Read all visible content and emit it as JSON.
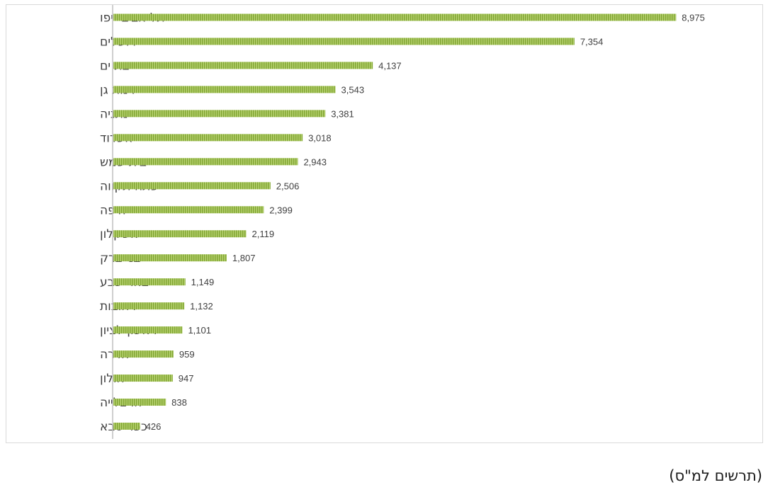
{
  "chart_data": {
    "type": "bar",
    "orientation": "horizontal",
    "categories": [
      "תל אביב -יפו",
      "ירושלים",
      "בת ים",
      "רמת גן",
      "נתניה",
      "אשדוד",
      "בית שמש",
      "פתח תקווה",
      "חיפה",
      "אשקלון",
      "בני ברק",
      "באר שבע",
      "רחובות",
      "ראשון לציון",
      "חדרה",
      "חולון",
      "הרצלייה",
      "כפר סבא"
    ],
    "values": [
      8975,
      7354,
      4137,
      3543,
      3381,
      3018,
      2943,
      2506,
      2399,
      2119,
      1807,
      1149,
      1132,
      1101,
      959,
      947,
      838,
      426
    ],
    "value_labels": [
      "8,975",
      "7,354",
      "4,137",
      "3,543",
      "3,381",
      "3,018",
      "2,943",
      "2,506",
      "2,399",
      "2,119",
      "1,807",
      "1,149",
      "1,132",
      "1,101",
      "959",
      "947",
      "838",
      "426"
    ],
    "xlim": [
      0,
      10000
    ],
    "grid": false,
    "bar_color": "#8db33f"
  },
  "caption": "(תרשים למ\"ס)"
}
